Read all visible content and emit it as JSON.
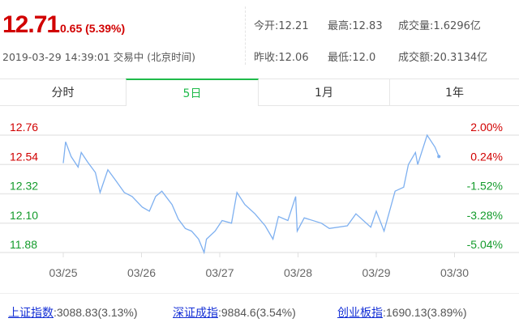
{
  "quote": {
    "price": "12.71",
    "change": "0.65 (5.39%)",
    "timestamp": "2019-03-29 14:39:01 交易中 (北京时间)"
  },
  "stats": {
    "open": "今开:12.21",
    "high": "最高:12.83",
    "volume": "成交量:1.6296亿",
    "prev_close": "昨收:12.06",
    "low": "最低:12.0",
    "turnover": "成交额:20.3134亿"
  },
  "tabs": [
    {
      "label": "分时"
    },
    {
      "label": "5日",
      "active": true
    },
    {
      "label": "1月"
    },
    {
      "label": "1年"
    }
  ],
  "colors": {
    "up": "#d10000",
    "down": "#139b2b",
    "line": "#7eb0f0",
    "active_tab": "#1fba4a"
  },
  "chart_data": {
    "type": "line",
    "y_left_ticks": [
      "12.76",
      "12.54",
      "12.32",
      "12.10",
      "11.88"
    ],
    "y_right_ticks": [
      "2.00%",
      "0.24%",
      "-1.52%",
      "-3.28%",
      "-5.04%"
    ],
    "ylim": [
      11.88,
      12.76
    ],
    "x_ticks": [
      "03/25",
      "03/26",
      "03/27",
      "03/28",
      "03/29",
      "03/30"
    ],
    "grid": true,
    "series": [
      {
        "x": [
          0,
          0.03,
          0.1,
          0.19,
          0.23,
          0.31,
          0.41,
          0.47,
          0.57,
          0.67,
          0.78,
          0.88,
          1.01,
          1.1,
          1.18,
          1.26,
          1.39,
          1.47,
          1.56,
          1.64,
          1.73,
          1.8,
          1.83,
          1.94,
          2.03,
          2.15,
          2.22,
          2.32,
          2.45,
          2.58,
          2.68,
          2.75,
          2.87,
          2.97,
          2.99,
          3.08,
          3.3,
          3.4,
          3.63,
          3.74,
          3.93,
          4.0,
          4.1,
          4.24,
          4.35,
          4.41,
          4.5,
          4.53,
          4.65,
          4.75,
          4.8
        ],
        "y": [
          12.55,
          12.71,
          12.6,
          12.52,
          12.63,
          12.56,
          12.48,
          12.33,
          12.5,
          12.42,
          12.33,
          12.3,
          12.22,
          12.19,
          12.3,
          12.34,
          12.24,
          12.13,
          12.06,
          12.04,
          11.98,
          11.88,
          11.98,
          12.04,
          12.12,
          12.1,
          12.33,
          12.24,
          12.17,
          12.08,
          11.98,
          12.15,
          12.12,
          12.3,
          12.04,
          12.14,
          12.1,
          12.06,
          12.08,
          12.17,
          12.07,
          12.19,
          12.04,
          12.34,
          12.37,
          12.54,
          12.63,
          12.54,
          12.76,
          12.67,
          12.6
        ]
      }
    ]
  },
  "indices": [
    {
      "name": "上证指数",
      "value": ":3088.83(3.13%)"
    },
    {
      "name": "深证成指",
      "value": ":9884.6(3.54%)"
    },
    {
      "name": "创业板指",
      "value": ":1690.13(3.89%)"
    }
  ]
}
